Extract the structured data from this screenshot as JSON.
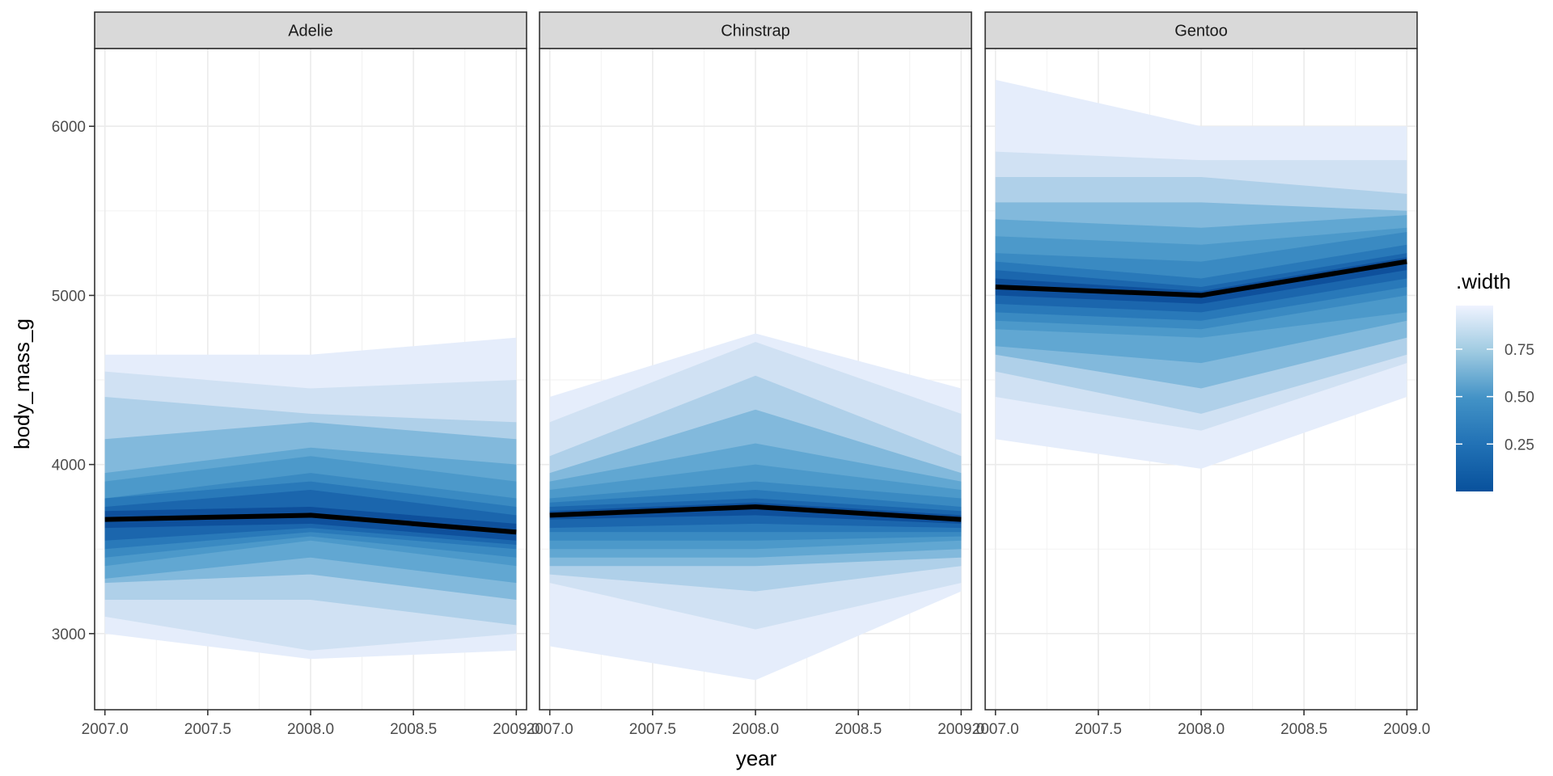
{
  "chart_data": {
    "type": "area",
    "subtype": "faceted line ribbon (gradient interval bands)",
    "x_label": "year",
    "y_label": "body_mass_g",
    "x_ticks": [
      "2007.0",
      "2007.5",
      "2008.0",
      "2008.5",
      "2009.0"
    ],
    "x_tick_values": [
      2007.0,
      2007.5,
      2008.0,
      2008.5,
      2009.0
    ],
    "y_ticks": [
      "3000",
      "4000",
      "5000",
      "6000"
    ],
    "y_tick_values": [
      3000,
      4000,
      5000,
      6000
    ],
    "xlim": [
      2006.95,
      2009.05
    ],
    "ylim": [
      2550,
      6460
    ],
    "grid": true,
    "legend": {
      "title": ".width",
      "placement": "right",
      "labels": [
        "0.75",
        "0.50",
        "0.25"
      ],
      "label_values": [
        0.75,
        0.5,
        0.25
      ],
      "range": [
        0.0,
        0.98
      ],
      "color_low": "#08519c",
      "color_high": "#eff3ff"
    },
    "band_widths": [
      0.95,
      0.85,
      0.75,
      0.65,
      0.55,
      0.45,
      0.35,
      0.25,
      0.15,
      0.05
    ],
    "facets": [
      {
        "name": "Adelie",
        "x": [
          2007,
          2008,
          2009
        ],
        "median": [
          3675,
          3700,
          3600
        ],
        "bands": [
          {
            "width": 0.95,
            "lower": [
              3000,
              2850,
              2900
            ],
            "upper": [
              4650,
              4650,
              4750
            ]
          },
          {
            "width": 0.85,
            "lower": [
              3100,
              2900,
              3000
            ],
            "upper": [
              4550,
              4450,
              4500
            ]
          },
          {
            "width": 0.75,
            "lower": [
              3200,
              3200,
              3050
            ],
            "upper": [
              4400,
              4300,
              4250
            ]
          },
          {
            "width": 0.65,
            "lower": [
              3300,
              3350,
              3200
            ],
            "upper": [
              4150,
              4250,
              4150
            ]
          },
          {
            "width": 0.55,
            "lower": [
              3325,
              3450,
              3300
            ],
            "upper": [
              3950,
              4100,
              4000
            ]
          },
          {
            "width": 0.45,
            "lower": [
              3400,
              3550,
              3400
            ],
            "upper": [
              3900,
              4050,
              3900
            ]
          },
          {
            "width": 0.35,
            "lower": [
              3450,
              3575,
              3450
            ],
            "upper": [
              3800,
              3950,
              3800
            ]
          },
          {
            "width": 0.25,
            "lower": [
              3500,
              3600,
              3500
            ],
            "upper": [
              3800,
              3900,
              3750
            ]
          },
          {
            "width": 0.15,
            "lower": [
              3550,
              3625,
              3525
            ],
            "upper": [
              3750,
              3850,
              3700
            ]
          },
          {
            "width": 0.05,
            "lower": [
              3625,
              3650,
              3550
            ],
            "upper": [
              3725,
              3750,
              3650
            ]
          }
        ]
      },
      {
        "name": "Chinstrap",
        "x": [
          2007,
          2008,
          2009
        ],
        "median": [
          3700,
          3750,
          3675
        ],
        "bands": [
          {
            "width": 0.95,
            "lower": [
              2925,
              2725,
              3250
            ],
            "upper": [
              4400,
              4775,
              4450
            ]
          },
          {
            "width": 0.85,
            "lower": [
              3300,
              3025,
              3300
            ],
            "upper": [
              4250,
              4725,
              4300
            ]
          },
          {
            "width": 0.75,
            "lower": [
              3350,
              3250,
              3400
            ],
            "upper": [
              4050,
              4525,
              4050
            ]
          },
          {
            "width": 0.65,
            "lower": [
              3400,
              3400,
              3450
            ],
            "upper": [
              3950,
              4325,
              3950
            ]
          },
          {
            "width": 0.55,
            "lower": [
              3450,
              3450,
              3500
            ],
            "upper": [
              3900,
              4125,
              3900
            ]
          },
          {
            "width": 0.45,
            "lower": [
              3500,
              3500,
              3550
            ],
            "upper": [
              3850,
              4000,
              3850
            ]
          },
          {
            "width": 0.35,
            "lower": [
              3550,
              3550,
              3575
            ],
            "upper": [
              3800,
              3900,
              3800
            ]
          },
          {
            "width": 0.25,
            "lower": [
              3600,
              3600,
              3600
            ],
            "upper": [
              3775,
              3850,
              3750
            ]
          },
          {
            "width": 0.15,
            "lower": [
              3625,
              3650,
              3625
            ],
            "upper": [
              3750,
              3800,
              3725
            ]
          },
          {
            "width": 0.05,
            "lower": [
              3675,
              3700,
              3650
            ],
            "upper": [
              3725,
              3775,
              3700
            ]
          }
        ]
      },
      {
        "name": "Gentoo",
        "x": [
          2007,
          2008,
          2009
        ],
        "median": [
          5050,
          5000,
          5200
        ],
        "bands": [
          {
            "width": 0.95,
            "lower": [
              4150,
              3975,
              4400
            ],
            "upper": [
              6275,
              6000,
              6000
            ]
          },
          {
            "width": 0.85,
            "lower": [
              4400,
              4200,
              4600
            ],
            "upper": [
              5850,
              5800,
              5800
            ]
          },
          {
            "width": 0.75,
            "lower": [
              4550,
              4300,
              4650
            ],
            "upper": [
              5700,
              5700,
              5600
            ]
          },
          {
            "width": 0.65,
            "lower": [
              4650,
              4450,
              4750
            ],
            "upper": [
              5550,
              5550,
              5500
            ]
          },
          {
            "width": 0.55,
            "lower": [
              4700,
              4600,
              4850
            ],
            "upper": [
              5450,
              5400,
              5475
            ]
          },
          {
            "width": 0.45,
            "lower": [
              4800,
              4750,
              4900
            ],
            "upper": [
              5350,
              5300,
              5400
            ]
          },
          {
            "width": 0.35,
            "lower": [
              4850,
              4800,
              5000
            ],
            "upper": [
              5250,
              5200,
              5375
            ]
          },
          {
            "width": 0.25,
            "lower": [
              4900,
              4850,
              5050
            ],
            "upper": [
              5200,
              5100,
              5300
            ]
          },
          {
            "width": 0.15,
            "lower": [
              4950,
              4900,
              5100
            ],
            "upper": [
              5150,
              5050,
              5250
            ]
          },
          {
            "width": 0.05,
            "lower": [
              5000,
              4950,
              5150
            ],
            "upper": [
              5100,
              5025,
              5225
            ]
          }
        ]
      }
    ]
  }
}
